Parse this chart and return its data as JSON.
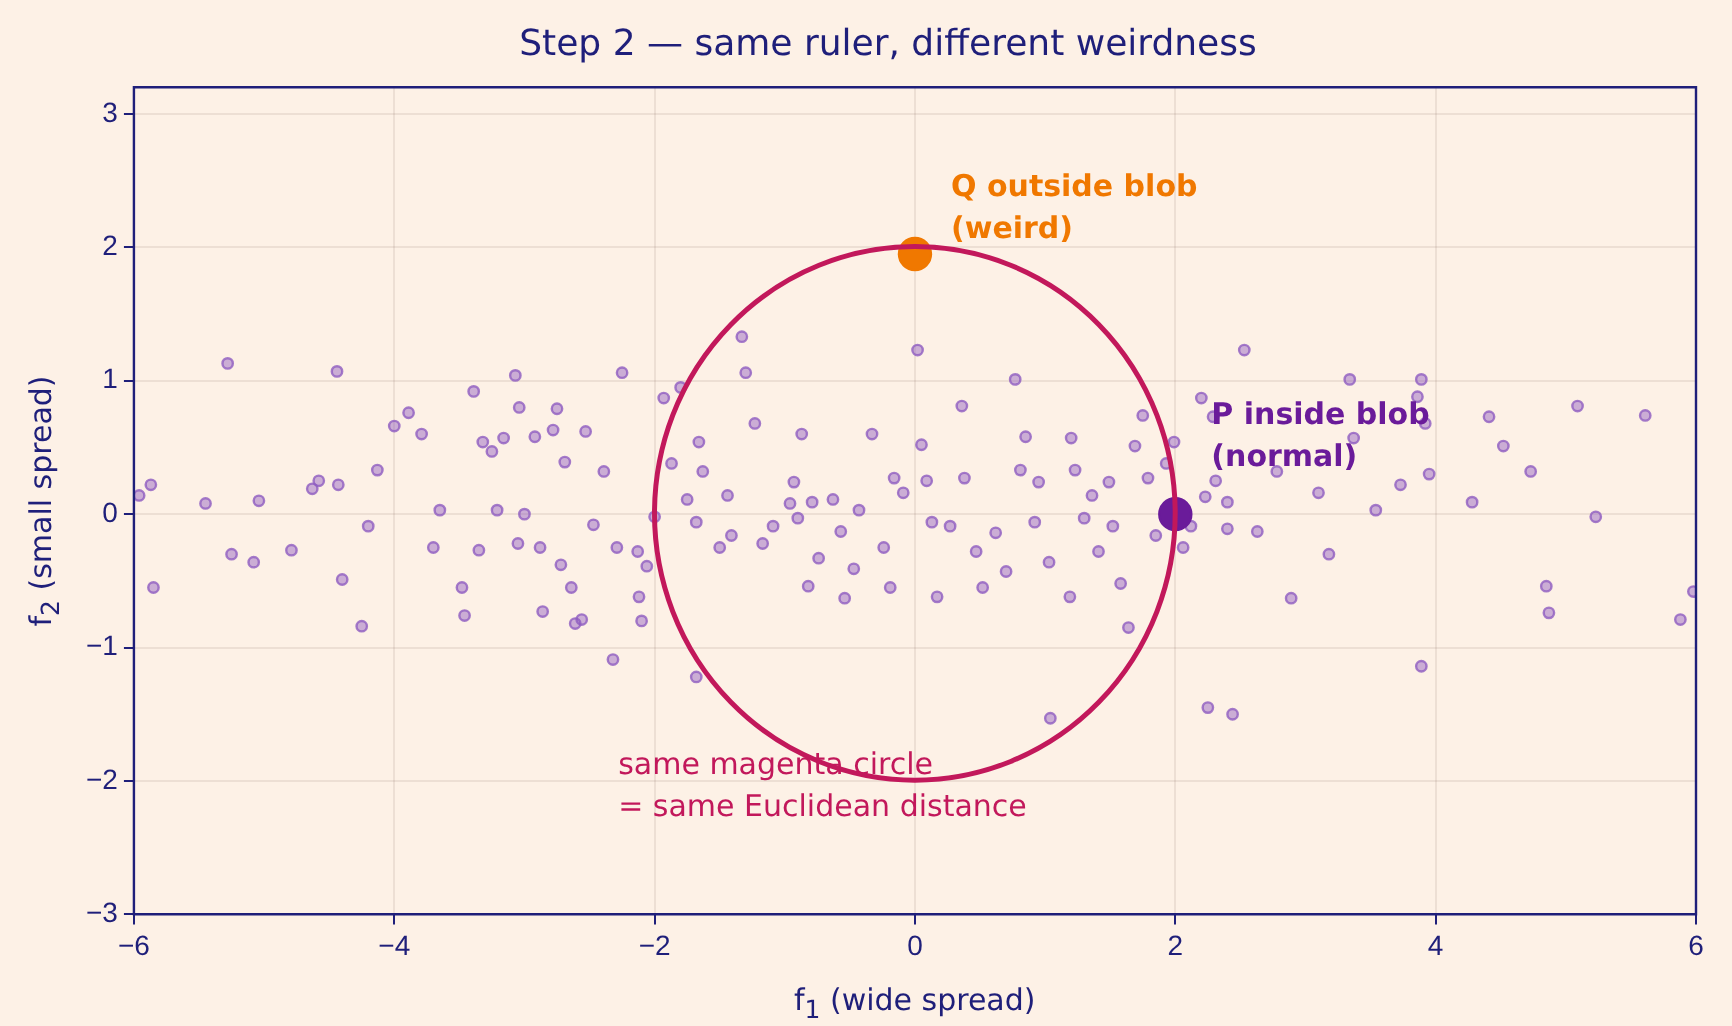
{
  "chart_data": {
    "type": "scatter",
    "title": "Step 2 — same ruler, different weirdness",
    "xlabel": "f$_{1}$ (wide spread)",
    "ylabel": "f$_{2}$ (small spread)",
    "xlim": [
      -6,
      6
    ],
    "ylim": [
      -3,
      3.2
    ],
    "xticks": [
      -6,
      -4,
      -2,
      0,
      2,
      4,
      6
    ],
    "yticks": [
      -3,
      -2,
      -1,
      0,
      1,
      2,
      3
    ],
    "grid": true,
    "legend": false,
    "marker": "circle",
    "annotations": [
      {
        "text": "Q outside blob\n(weird)",
        "x": 0,
        "y": 1.95
      },
      {
        "text": "P inside blob\n(normal)",
        "x": 2,
        "y": 0
      },
      "same magenta circle\n= same Euclidean distance"
    ],
    "series": [
      {
        "color": "#8e5cc0",
        "x": [
          -5.96,
          -5.87,
          -5.85,
          -5.45,
          -5.28,
          -5.25,
          -5.08,
          -5.04,
          -4.79,
          -4.63,
          -4.58,
          -4.44,
          -4.43,
          -4.4,
          -4.25,
          -4.2,
          -4.13,
          -4.0,
          -3.89,
          -3.79,
          -3.7,
          -3.65,
          -3.48,
          -3.46,
          -3.39,
          -3.35,
          -3.32,
          -3.25,
          -3.21,
          -3.16,
          -3.07,
          -3.04,
          -3.05,
          -3.0,
          -2.92,
          -2.88,
          -2.86,
          -2.78,
          -2.75,
          -2.72,
          -2.69,
          -2.64,
          -2.61,
          -2.56,
          -2.53,
          -2.47,
          -2.39,
          -2.32,
          -2.25,
          -2.29,
          -2.13,
          -2.1,
          -2.12,
          -2.06,
          -2.0,
          -1.93,
          -1.87,
          -1.8,
          -1.75,
          -1.68,
          -1.68,
          -1.63,
          -1.66,
          -1.5,
          -1.44,
          -1.41,
          -1.33,
          -1.3,
          -1.23,
          -1.17,
          -1.09,
          -0.96,
          -0.93,
          -0.87,
          -0.9,
          -0.82,
          -0.79,
          -0.74,
          -0.63,
          -0.57,
          -0.54,
          -0.47,
          -0.43,
          -0.33,
          -0.24,
          -0.19,
          -0.16,
          -0.09,
          0.02,
          0.05,
          0.09,
          0.13,
          0.17,
          0.27,
          0.36,
          0.38,
          0.47,
          0.52,
          0.62,
          0.7,
          0.77,
          0.81,
          0.85,
          0.92,
          0.95,
          1.04,
          1.03,
          1.19,
          1.2,
          1.23,
          1.3,
          1.36,
          1.41,
          1.49,
          1.52,
          1.58,
          1.64,
          1.69,
          1.75,
          1.79,
          1.85,
          1.93,
          1.99,
          2.06,
          2.12,
          2.2,
          2.23,
          2.29,
          2.31,
          2.4,
          2.4,
          2.25,
          2.44,
          2.53,
          2.63,
          2.78,
          2.89,
          3.1,
          3.18,
          3.34,
          3.37,
          3.54,
          3.73,
          3.86,
          3.89,
          3.92,
          3.95,
          3.89,
          4.28,
          4.41,
          4.52,
          4.73,
          4.85,
          4.87,
          5.09,
          5.23,
          5.61,
          5.88,
          5.98
        ],
        "values": [
          0.14,
          0.22,
          -0.55,
          0.08,
          1.13,
          -0.3,
          -0.36,
          0.1,
          -0.27,
          0.19,
          0.25,
          1.07,
          0.22,
          -0.49,
          -0.84,
          -0.09,
          0.33,
          0.66,
          0.76,
          0.6,
          -0.25,
          0.03,
          -0.55,
          -0.76,
          0.92,
          -0.27,
          0.54,
          0.47,
          0.03,
          0.57,
          1.04,
          0.8,
          -0.22,
          0,
          0.58,
          -0.25,
          -0.73,
          0.63,
          0.79,
          -0.38,
          0.39,
          -0.55,
          -0.82,
          -0.79,
          0.62,
          -0.08,
          0.32,
          -1.09,
          1.06,
          -0.25,
          -0.28,
          -0.8,
          -0.62,
          -0.39,
          -0.02,
          0.87,
          0.38,
          0.95,
          0.11,
          -0.06,
          -1.22,
          0.32,
          0.54,
          -0.25,
          0.14,
          -0.16,
          1.33,
          1.06,
          0.68,
          -0.22,
          -0.09,
          0.08,
          0.24,
          0.6,
          -0.03,
          -0.54,
          0.09,
          -0.33,
          0.11,
          -0.13,
          -0.63,
          -0.41,
          0.03,
          0.6,
          -0.25,
          -0.55,
          0.27,
          0.16,
          1.23,
          0.52,
          0.25,
          -0.06,
          -0.62,
          -0.09,
          0.81,
          0.27,
          -0.28,
          -0.55,
          -0.14,
          -0.43,
          1.01,
          0.33,
          0.58,
          -0.06,
          0.24,
          -1.53,
          -0.36,
          -0.62,
          0.57,
          0.33,
          -0.03,
          0.14,
          -0.28,
          0.24,
          -0.09,
          -0.52,
          -0.85,
          0.51,
          0.74,
          0.27,
          -0.16,
          0.38,
          0.54,
          -0.25,
          -0.09,
          0.87,
          0.13,
          0.73,
          0.25,
          -0.11,
          0.09,
          -1.45,
          -1.5,
          1.23,
          -0.13,
          0.32,
          -0.63,
          0.16,
          -0.3,
          1.01,
          0.57,
          0.03,
          0.22,
          0.88,
          1.01,
          0.68,
          0.3,
          -1.14,
          0.09,
          0.73,
          0.51,
          0.32,
          -0.54,
          -0.74,
          0.81,
          -0.02,
          0.74,
          -0.79,
          -0.58
        ]
      },
      {
        "color": "#f07800",
        "x": [
          0
        ],
        "values": [
          1.95
        ]
      },
      {
        "color": "#6a1b9a",
        "x": [
          2
        ],
        "values": [
          0
        ]
      }
    ]
  }
}
